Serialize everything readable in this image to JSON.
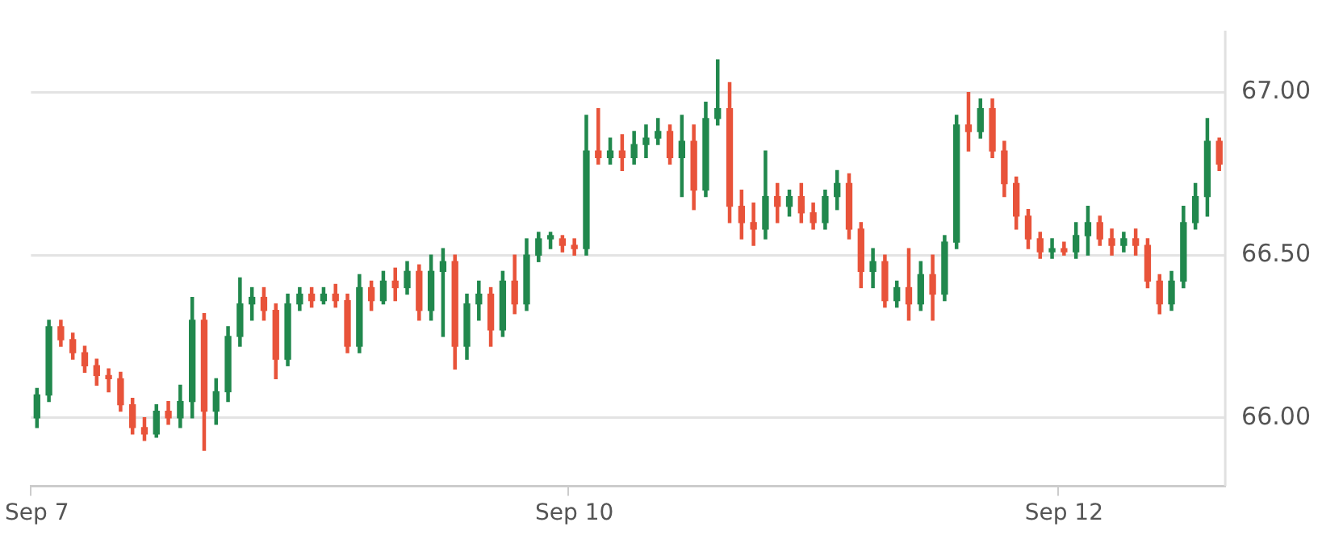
{
  "chart_data": {
    "type": "candlestick",
    "categories": [
      "Sep 7",
      null,
      null,
      null,
      null,
      null,
      null,
      null,
      null,
      null,
      null,
      null,
      null,
      null,
      null,
      null,
      null,
      null,
      null,
      null,
      null,
      null,
      null,
      null,
      null,
      null,
      null,
      null,
      null,
      null,
      null,
      null,
      null,
      null,
      null,
      null,
      null,
      null,
      null,
      null,
      null,
      null,
      null,
      null,
      null,
      "Sep 10",
      null,
      null,
      null,
      null,
      null,
      null,
      null,
      null,
      null,
      null,
      null,
      null,
      null,
      null,
      null,
      null,
      null,
      null,
      null,
      null,
      null,
      null,
      null,
      null,
      null,
      null,
      null,
      null,
      null,
      null,
      null,
      null,
      null,
      null,
      null,
      null,
      null,
      null,
      null,
      null,
      "Sep 12",
      null,
      null,
      null,
      null,
      null,
      null,
      null,
      null,
      null,
      null,
      null,
      null,
      null
    ],
    "ohlc": [
      [
        66.0,
        66.09,
        65.97,
        66.07
      ],
      [
        66.07,
        66.3,
        66.05,
        66.28
      ],
      [
        66.28,
        66.3,
        66.22,
        66.24
      ],
      [
        66.24,
        66.26,
        66.18,
        66.2
      ],
      [
        66.2,
        66.22,
        66.14,
        66.16
      ],
      [
        66.16,
        66.18,
        66.1,
        66.13
      ],
      [
        66.13,
        66.15,
        66.08,
        66.12
      ],
      [
        66.12,
        66.14,
        66.02,
        66.04
      ],
      [
        66.04,
        66.06,
        65.95,
        65.97
      ],
      [
        65.97,
        66.0,
        65.93,
        65.95
      ],
      [
        65.95,
        66.04,
        65.94,
        66.02
      ],
      [
        66.02,
        66.05,
        65.98,
        66.0
      ],
      [
        66.0,
        66.1,
        65.97,
        66.05
      ],
      [
        66.05,
        66.37,
        66.0,
        66.3
      ],
      [
        66.3,
        66.32,
        65.9,
        66.02
      ],
      [
        66.02,
        66.12,
        65.98,
        66.08
      ],
      [
        66.08,
        66.28,
        66.05,
        66.25
      ],
      [
        66.25,
        66.43,
        66.22,
        66.35
      ],
      [
        66.35,
        66.4,
        66.3,
        66.37
      ],
      [
        66.37,
        66.4,
        66.3,
        66.33
      ],
      [
        66.33,
        66.35,
        66.12,
        66.18
      ],
      [
        66.18,
        66.38,
        66.16,
        66.35
      ],
      [
        66.35,
        66.4,
        66.33,
        66.38
      ],
      [
        66.38,
        66.4,
        66.34,
        66.36
      ],
      [
        66.36,
        66.4,
        66.35,
        66.38
      ],
      [
        66.38,
        66.41,
        66.34,
        66.36
      ],
      [
        66.36,
        66.38,
        66.2,
        66.22
      ],
      [
        66.22,
        66.44,
        66.2,
        66.4
      ],
      [
        66.4,
        66.42,
        66.33,
        66.36
      ],
      [
        66.36,
        66.45,
        66.35,
        66.42
      ],
      [
        66.42,
        66.46,
        66.36,
        66.4
      ],
      [
        66.4,
        66.48,
        66.38,
        66.45
      ],
      [
        66.45,
        66.47,
        66.3,
        66.33
      ],
      [
        66.33,
        66.5,
        66.3,
        66.45
      ],
      [
        66.45,
        66.52,
        66.25,
        66.48
      ],
      [
        66.48,
        66.5,
        66.15,
        66.22
      ],
      [
        66.22,
        66.38,
        66.18,
        66.35
      ],
      [
        66.35,
        66.42,
        66.3,
        66.38
      ],
      [
        66.38,
        66.4,
        66.22,
        66.27
      ],
      [
        66.27,
        66.45,
        66.25,
        66.42
      ],
      [
        66.42,
        66.5,
        66.32,
        66.35
      ],
      [
        66.35,
        66.55,
        66.33,
        66.5
      ],
      [
        66.5,
        66.57,
        66.48,
        66.55
      ],
      [
        66.55,
        66.57,
        66.52,
        66.56
      ],
      [
        66.55,
        66.56,
        66.51,
        66.53
      ],
      [
        66.53,
        66.55,
        66.5,
        66.52
      ],
      [
        66.52,
        66.93,
        66.5,
        66.82
      ],
      [
        66.82,
        66.95,
        66.78,
        66.8
      ],
      [
        66.8,
        66.86,
        66.78,
        66.82
      ],
      [
        66.82,
        66.87,
        66.76,
        66.8
      ],
      [
        66.8,
        66.88,
        66.78,
        66.84
      ],
      [
        66.84,
        66.9,
        66.8,
        66.86
      ],
      [
        66.86,
        66.92,
        66.84,
        66.88
      ],
      [
        66.88,
        66.9,
        66.78,
        66.8
      ],
      [
        66.8,
        66.93,
        66.68,
        66.85
      ],
      [
        66.85,
        66.9,
        66.64,
        66.7
      ],
      [
        66.7,
        66.97,
        66.68,
        66.92
      ],
      [
        66.92,
        67.1,
        66.9,
        66.95
      ],
      [
        66.95,
        67.03,
        66.6,
        66.65
      ],
      [
        66.65,
        66.7,
        66.55,
        66.6
      ],
      [
        66.6,
        66.66,
        66.53,
        66.58
      ],
      [
        66.58,
        66.82,
        66.55,
        66.68
      ],
      [
        66.68,
        66.72,
        66.6,
        66.65
      ],
      [
        66.65,
        66.7,
        66.62,
        66.68
      ],
      [
        66.68,
        66.72,
        66.6,
        66.63
      ],
      [
        66.63,
        66.66,
        66.58,
        66.6
      ],
      [
        66.6,
        66.7,
        66.58,
        66.68
      ],
      [
        66.68,
        66.76,
        66.64,
        66.72
      ],
      [
        66.72,
        66.75,
        66.55,
        66.58
      ],
      [
        66.58,
        66.6,
        66.4,
        66.45
      ],
      [
        66.45,
        66.52,
        66.4,
        66.48
      ],
      [
        66.48,
        66.5,
        66.34,
        66.36
      ],
      [
        66.36,
        66.42,
        66.34,
        66.4
      ],
      [
        66.4,
        66.52,
        66.3,
        66.35
      ],
      [
        66.35,
        66.48,
        66.33,
        66.44
      ],
      [
        66.44,
        66.5,
        66.3,
        66.38
      ],
      [
        66.38,
        66.56,
        66.36,
        66.54
      ],
      [
        66.54,
        66.93,
        66.52,
        66.9
      ],
      [
        66.9,
        67.0,
        66.82,
        66.88
      ],
      [
        66.88,
        66.98,
        66.86,
        66.95
      ],
      [
        66.95,
        66.98,
        66.8,
        66.82
      ],
      [
        66.82,
        66.85,
        66.68,
        66.72
      ],
      [
        66.72,
        66.74,
        66.58,
        66.62
      ],
      [
        66.62,
        66.64,
        66.52,
        66.55
      ],
      [
        66.55,
        66.57,
        66.49,
        66.51
      ],
      [
        66.51,
        66.55,
        66.49,
        66.52
      ],
      [
        66.52,
        66.54,
        66.5,
        66.51
      ],
      [
        66.51,
        66.6,
        66.49,
        66.56
      ],
      [
        66.56,
        66.65,
        66.5,
        66.6
      ],
      [
        66.6,
        66.62,
        66.53,
        66.55
      ],
      [
        66.55,
        66.58,
        66.5,
        66.53
      ],
      [
        66.53,
        66.57,
        66.51,
        66.55
      ],
      [
        66.55,
        66.58,
        66.5,
        66.53
      ],
      [
        66.53,
        66.55,
        66.4,
        66.42
      ],
      [
        66.42,
        66.44,
        66.32,
        66.35
      ],
      [
        66.35,
        66.45,
        66.33,
        66.42
      ],
      [
        66.42,
        66.65,
        66.4,
        66.6
      ],
      [
        66.6,
        66.72,
        66.58,
        66.68
      ],
      [
        66.68,
        66.92,
        66.62,
        66.85
      ],
      [
        66.85,
        66.86,
        66.76,
        66.78
      ]
    ],
    "colors": [
      "#21884d",
      "#21884d",
      "#e8533a",
      "#e8533a",
      "#e8533a",
      "#e8533a",
      "#e8533a",
      "#e8533a",
      "#e8533a",
      "#e8533a",
      "#21884d",
      "#e8533a",
      "#21884d",
      "#21884d",
      "#e8533a",
      "#21884d",
      "#21884d",
      "#21884d",
      "#21884d",
      "#e8533a",
      "#e8533a",
      "#21884d",
      "#21884d",
      "#e8533a",
      "#21884d",
      "#e8533a",
      "#e8533a",
      "#21884d",
      "#e8533a",
      "#21884d",
      "#e8533a",
      "#21884d",
      "#e8533a",
      "#21884d",
      "#21884d",
      "#e8533a",
      "#21884d",
      "#21884d",
      "#e8533a",
      "#21884d",
      "#e8533a",
      "#21884d",
      "#21884d",
      "#21884d",
      "#e8533a",
      "#e8533a",
      "#21884d",
      "#e8533a",
      "#21884d",
      "#e8533a",
      "#21884d",
      "#21884d",
      "#21884d",
      "#e8533a",
      "#21884d",
      "#e8533a",
      "#21884d",
      "#21884d",
      "#e8533a",
      "#e8533a",
      "#e8533a",
      "#21884d",
      "#e8533a",
      "#21884d",
      "#e8533a",
      "#e8533a",
      "#21884d",
      "#21884d",
      "#e8533a",
      "#e8533a",
      "#21884d",
      "#e8533a",
      "#21884d",
      "#e8533a",
      "#21884d",
      "#e8533a",
      "#21884d",
      "#21884d",
      "#e8533a",
      "#21884d",
      "#e8533a",
      "#e8533a",
      "#e8533a",
      "#e8533a",
      "#e8533a",
      "#21884d",
      "#e8533a",
      "#21884d",
      "#21884d",
      "#e8533a",
      "#e8533a",
      "#21884d",
      "#e8533a",
      "#e8533a",
      "#e8533a",
      "#21884d",
      "#21884d",
      "#21884d",
      "#21884d",
      "#e8533a"
    ],
    "ylim": [
      65.79,
      67.19
    ],
    "yticks": [
      {
        "value": 66,
        "label": "66.00"
      },
      {
        "value": 66.5,
        "label": "66.50"
      },
      {
        "value": 67,
        "label": "67.00"
      }
    ],
    "grid": "y",
    "legend": false
  }
}
